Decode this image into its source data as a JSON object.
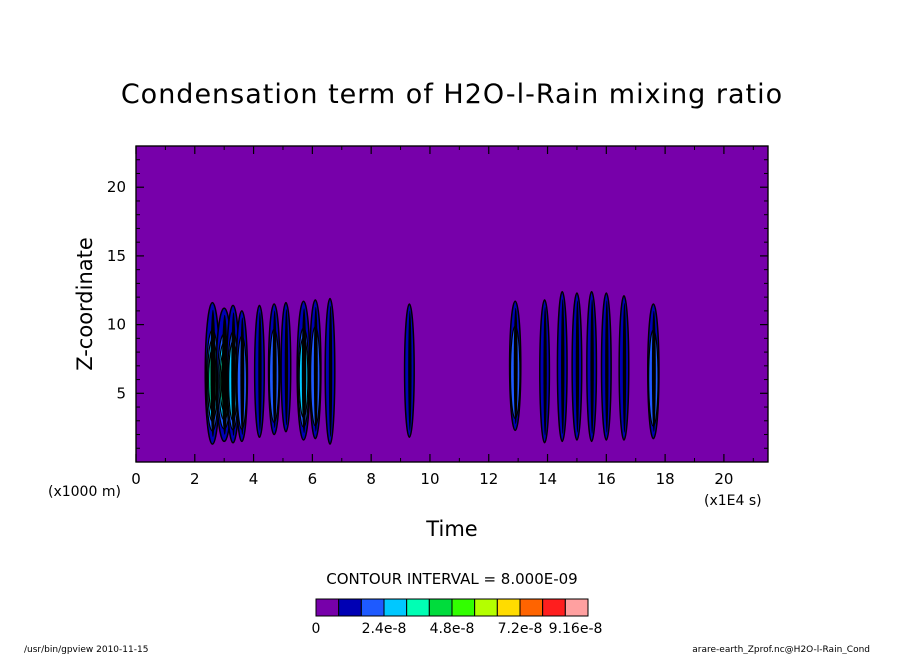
{
  "chart_data": {
    "type": "heatmap",
    "title": "Condensation term of H2O-l-Rain mixing ratio",
    "xlabel": "Time",
    "ylabel": "Z-coordinate",
    "x_unit_label": "(x1E4 s)",
    "y_unit_label": "(x1000 m)",
    "xlim": [
      0,
      21.5
    ],
    "ylim": [
      0,
      23
    ],
    "x_ticks": [
      0,
      2,
      4,
      6,
      8,
      10,
      12,
      14,
      16,
      18,
      20
    ],
    "y_ticks": [
      5,
      10,
      15,
      20
    ],
    "background_value": 0,
    "background_color": "#7700aa",
    "contour_interval_label": "CONTOUR INTERVAL = 8.000E-09",
    "colorbar": {
      "colors": [
        "#7700aa",
        "#0000b4",
        "#1e5aff",
        "#00c8ff",
        "#00ffb4",
        "#00dc3c",
        "#32ff00",
        "#b4ff00",
        "#ffdc00",
        "#ff6400",
        "#ff1e1e",
        "#ffa0a0"
      ],
      "labels": [
        "0",
        "2.4e-8",
        "4.8e-8",
        "7.2e-8",
        "9.16e-8"
      ]
    },
    "cells": [
      {
        "x": 2.6,
        "z_bottom": 1.3,
        "z_top": 11.6,
        "level": 4
      },
      {
        "x": 3.0,
        "z_bottom": 1.5,
        "z_top": 11.2,
        "level": 5
      },
      {
        "x": 3.3,
        "z_bottom": 1.4,
        "z_top": 11.4,
        "level": 3
      },
      {
        "x": 3.6,
        "z_bottom": 1.5,
        "z_top": 11.0,
        "level": 2
      },
      {
        "x": 4.2,
        "z_bottom": 1.8,
        "z_top": 11.4,
        "level": 1
      },
      {
        "x": 4.7,
        "z_bottom": 2.0,
        "z_top": 11.5,
        "level": 2
      },
      {
        "x": 5.1,
        "z_bottom": 2.2,
        "z_top": 11.6,
        "level": 1
      },
      {
        "x": 5.7,
        "z_bottom": 1.6,
        "z_top": 11.7,
        "level": 3
      },
      {
        "x": 6.1,
        "z_bottom": 1.7,
        "z_top": 11.8,
        "level": 2
      },
      {
        "x": 6.6,
        "z_bottom": 1.3,
        "z_top": 11.9,
        "level": 1
      },
      {
        "x": 9.3,
        "z_bottom": 1.8,
        "z_top": 11.5,
        "level": 1
      },
      {
        "x": 12.9,
        "z_bottom": 2.3,
        "z_top": 11.7,
        "level": 2
      },
      {
        "x": 13.9,
        "z_bottom": 1.4,
        "z_top": 11.8,
        "level": 1
      },
      {
        "x": 14.5,
        "z_bottom": 1.5,
        "z_top": 12.4,
        "level": 1
      },
      {
        "x": 15.0,
        "z_bottom": 1.6,
        "z_top": 12.3,
        "level": 1
      },
      {
        "x": 15.5,
        "z_bottom": 1.5,
        "z_top": 12.4,
        "level": 1
      },
      {
        "x": 16.0,
        "z_bottom": 1.6,
        "z_top": 12.3,
        "level": 1
      },
      {
        "x": 16.6,
        "z_bottom": 1.6,
        "z_top": 12.1,
        "level": 1
      },
      {
        "x": 17.6,
        "z_bottom": 1.7,
        "z_top": 11.5,
        "level": 2
      }
    ]
  },
  "footer": {
    "left": "/usr/bin/gpview  2010-11-15",
    "right": "arare-earth_Zprof.nc@H2O-l-Rain_Cond"
  }
}
